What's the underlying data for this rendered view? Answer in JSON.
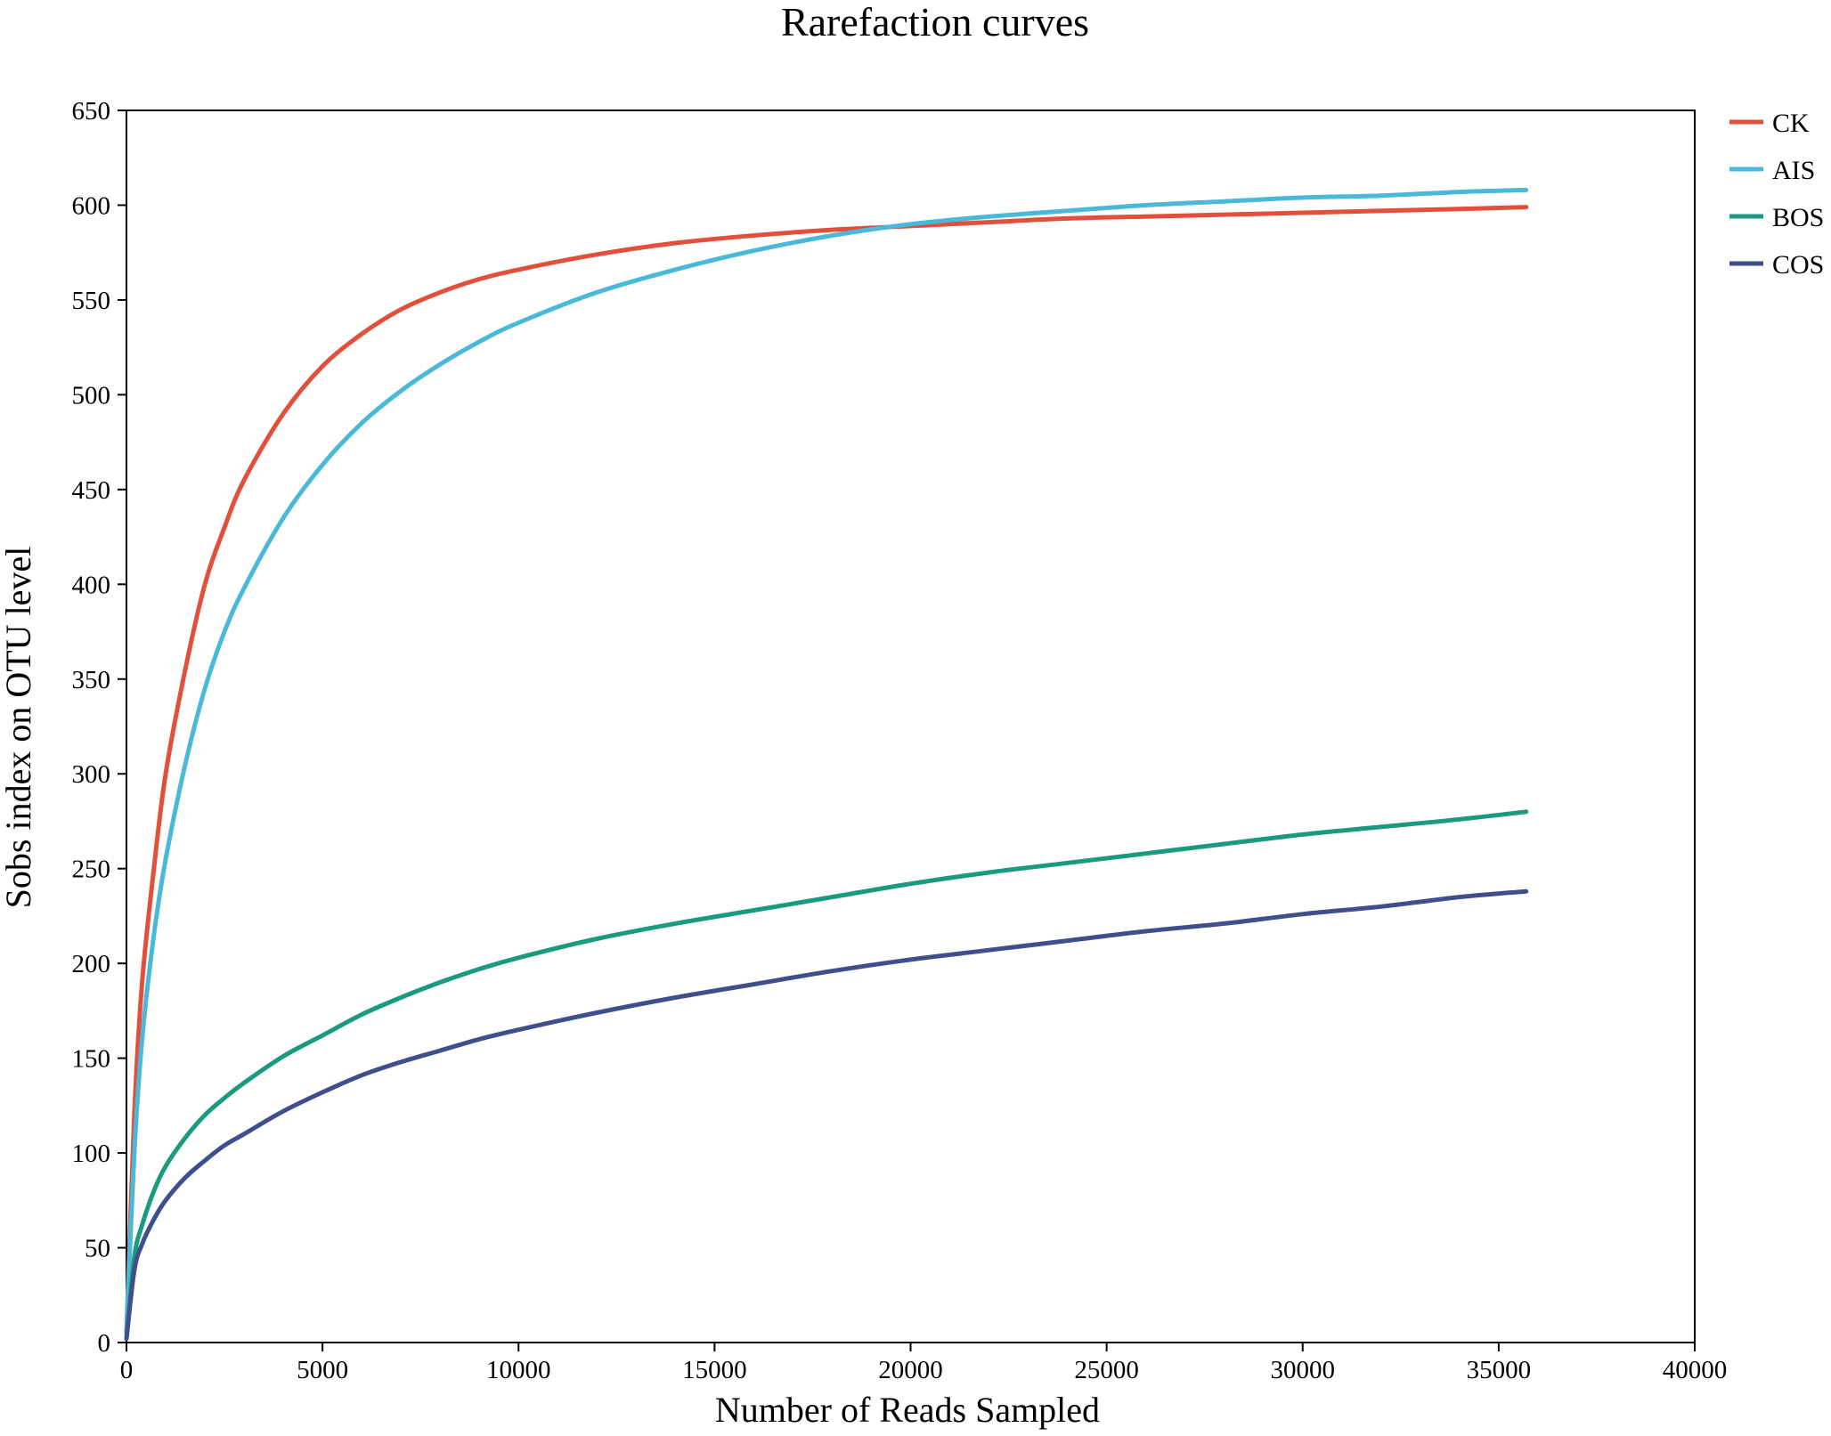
{
  "chart_data": {
    "type": "line",
    "title": "Rarefaction curves",
    "xlabel": "Number of Reads Sampled",
    "ylabel": "Sobs index on OTU level",
    "xlim": [
      0,
      40000
    ],
    "ylim": [
      0,
      650
    ],
    "x_ticks": [
      0,
      5000,
      10000,
      15000,
      20000,
      25000,
      30000,
      35000,
      40000
    ],
    "y_ticks": [
      0,
      50,
      100,
      150,
      200,
      250,
      300,
      350,
      400,
      450,
      500,
      550,
      600,
      650
    ],
    "grid": false,
    "legend_position": "top-right",
    "series": [
      {
        "name": "CK",
        "color": "#e2503b",
        "x": [
          0,
          200,
          400,
          700,
          1000,
          1500,
          2000,
          2500,
          3000,
          4000,
          5000,
          6000,
          7000,
          8000,
          9000,
          10000,
          12000,
          14000,
          16000,
          18000,
          20000,
          22000,
          24000,
          26000,
          28000,
          30000,
          32000,
          34000,
          35700
        ],
        "y": [
          5,
          120,
          190,
          250,
          300,
          355,
          400,
          430,
          455,
          490,
          515,
          532,
          545,
          554,
          561,
          566,
          574,
          580,
          584,
          587,
          589,
          591,
          593,
          594,
          595,
          596,
          597,
          598,
          599
        ]
      },
      {
        "name": "AIS",
        "color": "#4ab9d9",
        "x": [
          0,
          200,
          400,
          700,
          1000,
          1500,
          2000,
          2500,
          3000,
          4000,
          5000,
          6000,
          7000,
          8000,
          9000,
          10000,
          12000,
          14000,
          16000,
          18000,
          20000,
          22000,
          24000,
          26000,
          28000,
          30000,
          32000,
          34000,
          35700
        ],
        "y": [
          5,
          100,
          160,
          215,
          255,
          305,
          345,
          375,
          398,
          435,
          463,
          485,
          502,
          516,
          528,
          538,
          554,
          566,
          576,
          584,
          590,
          594,
          597,
          600,
          602,
          604,
          605,
          607,
          608
        ]
      },
      {
        "name": "BOS",
        "color": "#1a9a7e",
        "x": [
          0,
          200,
          400,
          700,
          1000,
          1500,
          2000,
          2500,
          3000,
          4000,
          5000,
          6000,
          7000,
          8000,
          9000,
          10000,
          12000,
          14000,
          16000,
          18000,
          20000,
          22000,
          24000,
          26000,
          28000,
          30000,
          32000,
          34000,
          35700
        ],
        "y": [
          2,
          45,
          62,
          80,
          93,
          108,
          120,
          129,
          137,
          151,
          162,
          173,
          182,
          190,
          197,
          203,
          213,
          221,
          228,
          235,
          242,
          248,
          253,
          258,
          263,
          268,
          272,
          276,
          280
        ]
      },
      {
        "name": "COS",
        "color": "#3e4f8c",
        "x": [
          0,
          200,
          400,
          700,
          1000,
          1500,
          2000,
          2500,
          3000,
          4000,
          5000,
          6000,
          7000,
          8000,
          9000,
          10000,
          12000,
          14000,
          16000,
          18000,
          20000,
          22000,
          24000,
          26000,
          28000,
          30000,
          32000,
          34000,
          35700
        ],
        "y": [
          2,
          38,
          52,
          65,
          75,
          87,
          96,
          104,
          110,
          122,
          132,
          141,
          148,
          154,
          160,
          165,
          174,
          182,
          189,
          196,
          202,
          207,
          212,
          217,
          221,
          226,
          230,
          235,
          238
        ]
      }
    ]
  }
}
